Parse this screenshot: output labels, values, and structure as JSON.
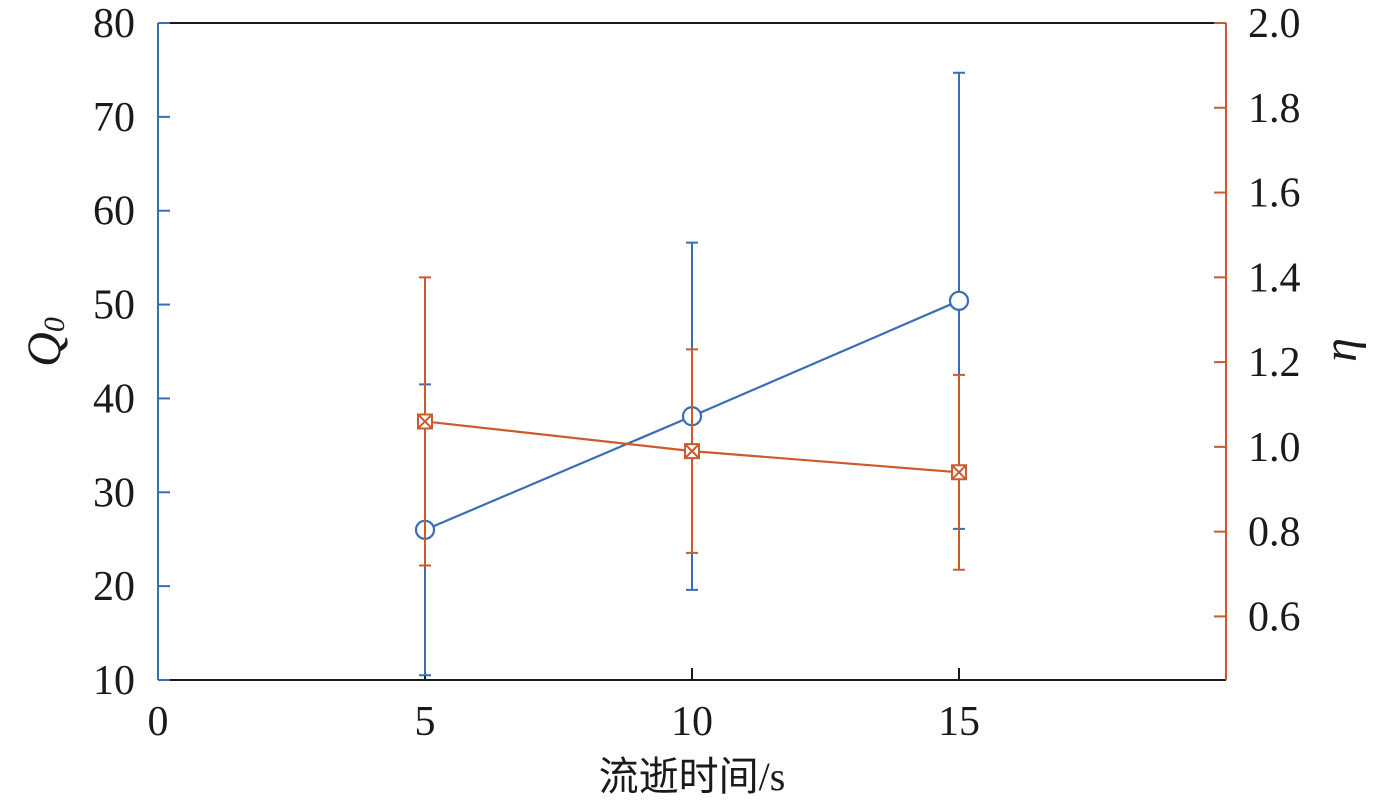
{
  "chart_data": {
    "type": "line",
    "x": [
      5,
      10,
      15
    ],
    "xlim": [
      0,
      20
    ],
    "xticks": [
      "0",
      "5",
      "10",
      "15"
    ],
    "xlabel": "流逝时间/s",
    "grid": false,
    "y_left": {
      "label": "Q",
      "label_subscript": "0",
      "lim": [
        10,
        80
      ],
      "ticks": [
        "10",
        "20",
        "30",
        "40",
        "50",
        "60",
        "70",
        "80"
      ],
      "color": "#3B6DB4",
      "series": {
        "marker": "circle",
        "color": "#3B6DB4",
        "values": [
          26.0,
          38.1,
          50.4
        ],
        "errors": [
          15.5,
          18.5,
          24.3
        ]
      }
    },
    "y_right": {
      "label": "η",
      "lim": [
        0.45,
        2.0
      ],
      "ticks": [
        "0.6",
        "0.8",
        "1.0",
        "1.2",
        "1.4",
        "1.6",
        "1.8",
        "2.0"
      ],
      "color": "#CB5A2D",
      "series": {
        "marker": "square-x",
        "color": "#CB5A2D",
        "values": [
          1.06,
          0.99,
          0.94
        ],
        "errors": [
          0.34,
          0.24,
          0.23
        ]
      }
    }
  }
}
